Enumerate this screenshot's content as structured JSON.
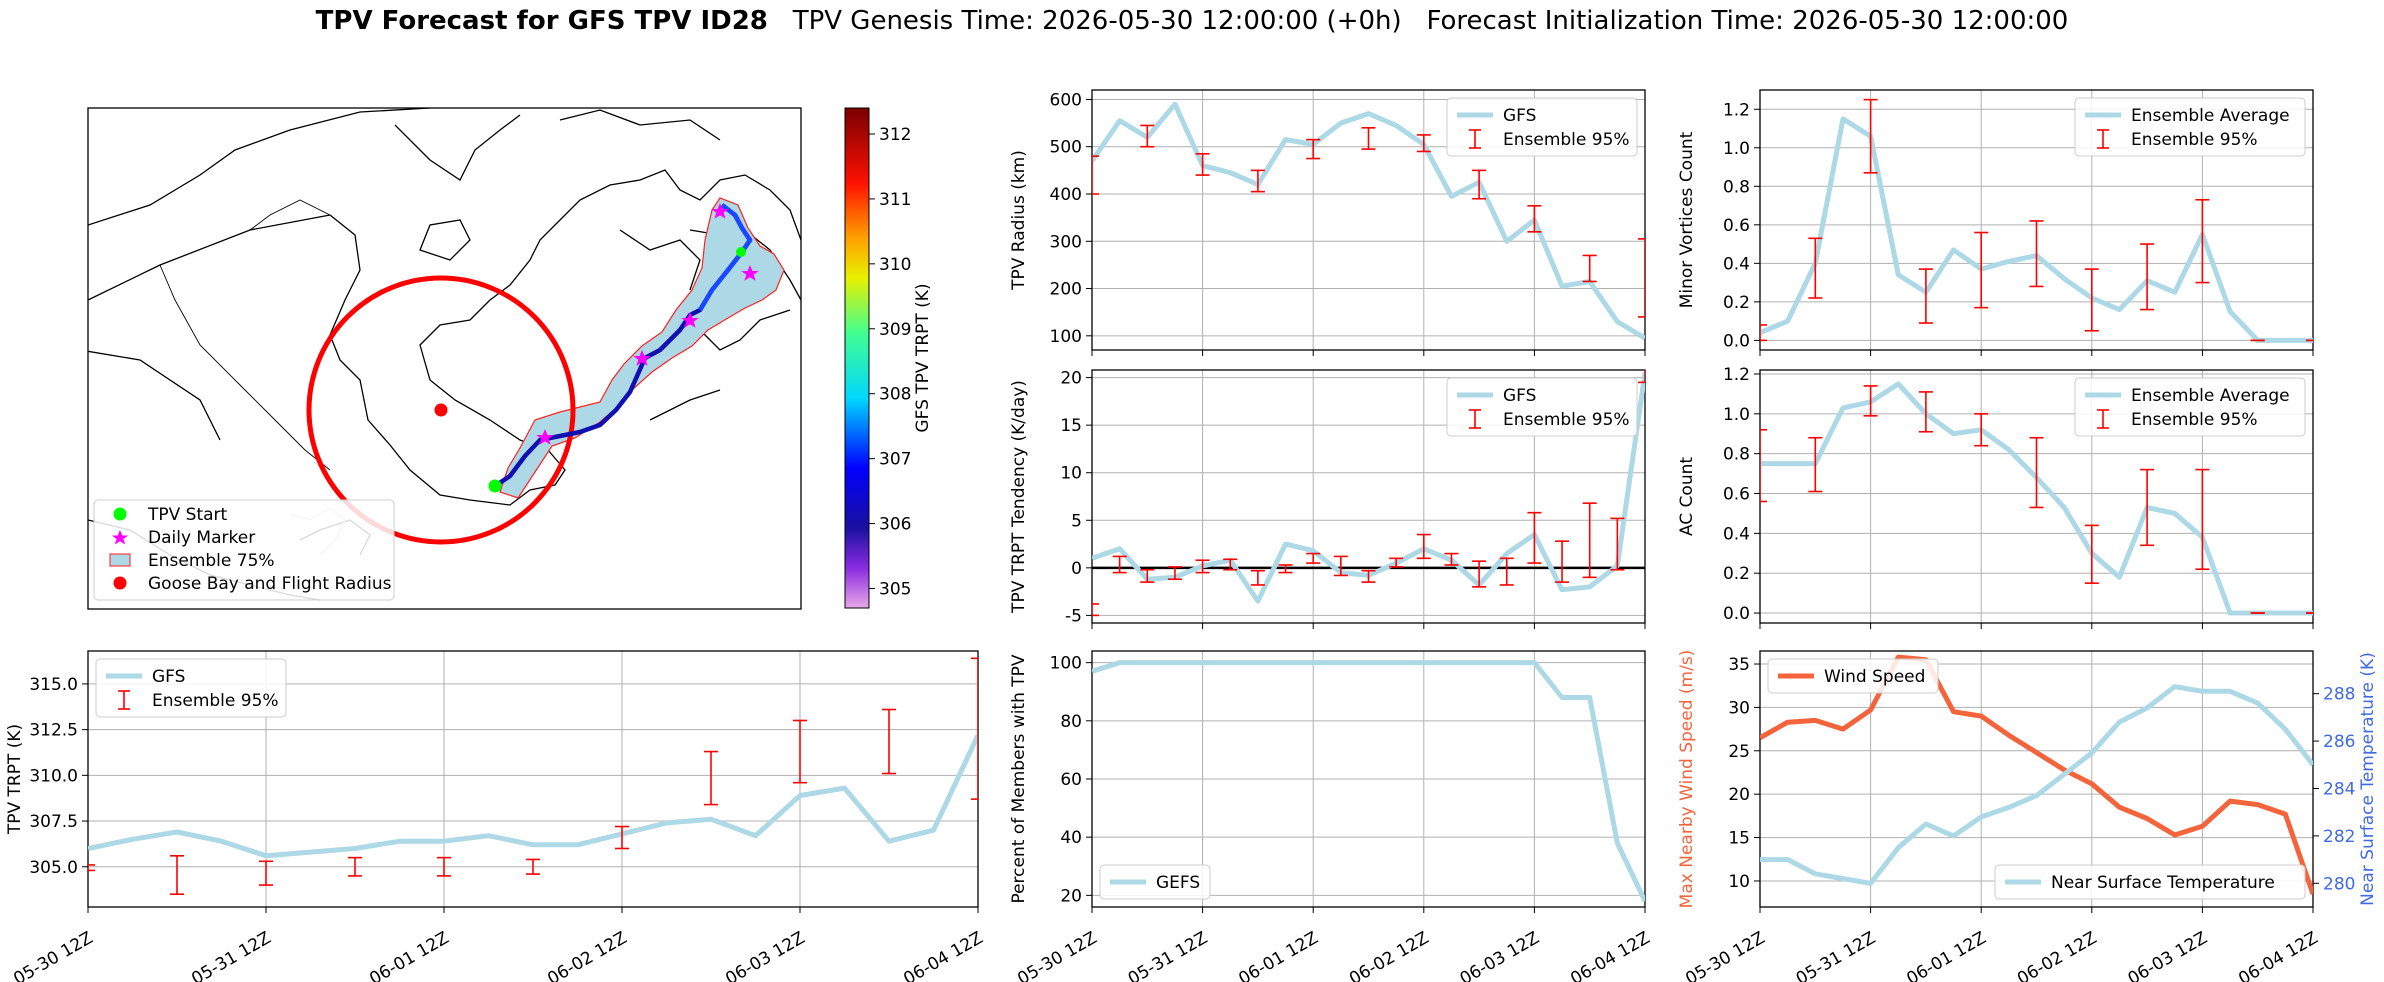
{
  "header": {
    "title_bold": "TPV Forecast for GFS TPV ID28",
    "genesis": "TPV Genesis Time: 2026-05-30 12:00:00 (+0h)",
    "init": "Forecast Initialization Time: 2026-05-30 12:00:00"
  },
  "colors": {
    "gfs": "#add8e6",
    "err": "#ff0000",
    "wind": "#f4643c",
    "temp": "#4169e1"
  },
  "time_ticks": [
    "05-30 12Z",
    "05-31 12Z",
    "06-01 12Z",
    "06-02 12Z",
    "06-03 12Z",
    "06-04 12Z"
  ],
  "map": {
    "colorbar_label": "GFS TPV TRPT (K)",
    "colorbar_ticks": [
      "305",
      "306",
      "307",
      "308",
      "309",
      "310",
      "311",
      "312"
    ],
    "legend": [
      {
        "label": "TPV Start",
        "color": "#00ff00",
        "marker": "circle"
      },
      {
        "label": "Daily Marker",
        "color": "#ff00ff",
        "marker": "star"
      },
      {
        "label": "Ensemble 75%",
        "color": "#add8e6",
        "marker": "patch"
      },
      {
        "label": "Goose Bay and Flight Radius",
        "color": "#ff0000",
        "marker": "circle"
      }
    ]
  },
  "chart_data": [
    {
      "id": "radius",
      "type": "line",
      "ylabel": "TPV Radius (km)",
      "ylim": [
        70,
        620
      ],
      "yticks": [
        100,
        200,
        300,
        400,
        500,
        600
      ],
      "legend": "top-right",
      "series": [
        {
          "name": "GFS",
          "kind": "line",
          "values": [
            470,
            555,
            520,
            590,
            460,
            445,
            420,
            515,
            505,
            550,
            570,
            545,
            505,
            395,
            425,
            300,
            345,
            205,
            215,
            130,
            95
          ]
        },
        {
          "name": "Ensemble 95%",
          "kind": "errorbar",
          "points": [
            [
              0,
              400,
              480
            ],
            [
              2,
              500,
              545
            ],
            [
              4,
              440,
              485
            ],
            [
              6,
              405,
              450
            ],
            [
              8,
              475,
              515
            ],
            [
              10,
              495,
              540
            ],
            [
              12,
              490,
              525
            ],
            [
              14,
              390,
              450
            ],
            [
              16,
              320,
              375
            ],
            [
              18,
              215,
              270
            ],
            [
              20,
              140,
              305
            ]
          ]
        }
      ]
    },
    {
      "id": "minor",
      "type": "line",
      "ylabel": "Minor Vortices Count",
      "ylim": [
        -0.05,
        1.3
      ],
      "yticks": [
        0.0,
        0.2,
        0.4,
        0.6,
        0.8,
        1.0,
        1.2
      ],
      "legend": "top-right",
      "series": [
        {
          "name": "Ensemble Average",
          "kind": "line",
          "values": [
            0.04,
            0.1,
            0.4,
            1.15,
            1.06,
            0.34,
            0.25,
            0.47,
            0.37,
            0.41,
            0.44,
            0.32,
            0.22,
            0.16,
            0.31,
            0.25,
            0.55,
            0.15,
            0.0,
            0.0,
            0.0
          ]
        },
        {
          "name": "Ensemble 95%",
          "kind": "errorbar",
          "points": [
            [
              0,
              0.0,
              0.08
            ],
            [
              2,
              0.22,
              0.53
            ],
            [
              4,
              0.87,
              1.25
            ],
            [
              6,
              0.09,
              0.37
            ],
            [
              8,
              0.17,
              0.56
            ],
            [
              10,
              0.28,
              0.62
            ],
            [
              12,
              0.05,
              0.37
            ],
            [
              14,
              0.16,
              0.5
            ],
            [
              16,
              0.3,
              0.73
            ],
            [
              18,
              0.0,
              0.0
            ],
            [
              20,
              0.0,
              0.0
            ]
          ]
        }
      ]
    },
    {
      "id": "tend",
      "type": "line",
      "ylabel": "TPV TRPT Tendency (K/day)",
      "ylim": [
        -5.8,
        20.8
      ],
      "yticks": [
        -5,
        0,
        5,
        10,
        15,
        20
      ],
      "legend": "top-right",
      "zero_line": true,
      "series": [
        {
          "name": "GFS",
          "kind": "line",
          "values": [
            1.0,
            2.0,
            -1.2,
            -1.0,
            0.2,
            0.8,
            -3.5,
            2.5,
            1.8,
            -0.5,
            -0.8,
            0.5,
            2.0,
            0.8,
            -1.8,
            1.5,
            3.5,
            -2.3,
            -2.0,
            0.2,
            20.5
          ]
        },
        {
          "name": "Ensemble 95%",
          "kind": "errorbar",
          "points": [
            [
              0,
              -5.0,
              -3.8
            ],
            [
              1,
              -0.5,
              1.2
            ],
            [
              2,
              -1.5,
              -0.2
            ],
            [
              3,
              -1.2,
              0.1
            ],
            [
              4,
              -0.5,
              0.8
            ],
            [
              5,
              -0.2,
              0.9
            ],
            [
              6,
              -1.8,
              -0.3
            ],
            [
              7,
              -0.5,
              0.3
            ],
            [
              8,
              0.5,
              1.5
            ],
            [
              9,
              -0.8,
              1.2
            ],
            [
              10,
              -1.5,
              -0.3
            ],
            [
              11,
              0.1,
              1.0
            ],
            [
              12,
              1.0,
              3.5
            ],
            [
              13,
              0.3,
              1.5
            ],
            [
              14,
              -2.0,
              0.7
            ],
            [
              15,
              -1.8,
              1.0
            ],
            [
              16,
              0.5,
              5.8
            ],
            [
              17,
              -1.5,
              2.8
            ],
            [
              18,
              -1.0,
              6.8
            ],
            [
              19,
              -0.2,
              5.2
            ],
            [
              20,
              19.5,
              21.0
            ]
          ]
        }
      ]
    },
    {
      "id": "ac",
      "type": "line",
      "ylabel": "AC Count",
      "ylim": [
        -0.05,
        1.22
      ],
      "yticks": [
        0.0,
        0.2,
        0.4,
        0.6,
        0.8,
        1.0,
        1.2
      ],
      "legend": "top-right",
      "series": [
        {
          "name": "Ensemble Average",
          "kind": "line",
          "values": [
            0.75,
            0.75,
            0.75,
            1.03,
            1.06,
            1.15,
            1.0,
            0.9,
            0.92,
            0.82,
            0.68,
            0.53,
            0.3,
            0.18,
            0.53,
            0.5,
            0.38,
            0.0,
            0.0,
            0.0,
            0.0
          ]
        },
        {
          "name": "Ensemble 95%",
          "kind": "errorbar",
          "points": [
            [
              0,
              0.56,
              0.92
            ],
            [
              2,
              0.61,
              0.88
            ],
            [
              4,
              0.99,
              1.14
            ],
            [
              6,
              0.91,
              1.11
            ],
            [
              8,
              0.84,
              1.0
            ],
            [
              10,
              0.53,
              0.88
            ],
            [
              12,
              0.15,
              0.44
            ],
            [
              14,
              0.34,
              0.72
            ],
            [
              16,
              0.22,
              0.72
            ],
            [
              18,
              0.0,
              0.0
            ],
            [
              20,
              0.0,
              0.0
            ]
          ]
        }
      ]
    },
    {
      "id": "trpt",
      "type": "line",
      "ylabel": "TPV TRPT (K)",
      "ylim": [
        302.8,
        316.8
      ],
      "yticks": [
        305.0,
        307.5,
        310.0,
        312.5,
        315.0
      ],
      "legend": "top-left",
      "series": [
        {
          "name": "GFS",
          "kind": "line",
          "values": [
            306.0,
            306.5,
            306.9,
            306.4,
            305.6,
            305.8,
            306.0,
            306.4,
            306.4,
            306.7,
            306.2,
            306.2,
            306.8,
            307.4,
            307.6,
            306.7,
            308.9,
            309.3,
            306.4,
            307.0,
            312.2
          ]
        },
        {
          "name": "Ensemble 95%",
          "kind": "errorbar",
          "points": [
            [
              0,
              304.8,
              305.1
            ],
            [
              2,
              303.5,
              305.6
            ],
            [
              4,
              304.0,
              305.3
            ],
            [
              6,
              304.5,
              305.5
            ],
            [
              8,
              304.5,
              305.5
            ],
            [
              10,
              304.6,
              305.4
            ],
            [
              12,
              306.0,
              307.2
            ],
            [
              14,
              308.4,
              311.3
            ],
            [
              16,
              309.6,
              313.0
            ],
            [
              18,
              310.1,
              313.6
            ],
            [
              20,
              308.7,
              316.4
            ]
          ]
        }
      ]
    },
    {
      "id": "members",
      "type": "line",
      "ylabel": "Percent of Members with TPV",
      "ylim": [
        16,
        104
      ],
      "yticks": [
        20,
        40,
        60,
        80,
        100
      ],
      "legend": "bottom-left",
      "series": [
        {
          "name": "GEFS",
          "kind": "line",
          "values": [
            97,
            100,
            100,
            100,
            100,
            100,
            100,
            100,
            100,
            100,
            100,
            100,
            100,
            100,
            100,
            100,
            100,
            88,
            88,
            38,
            18
          ]
        }
      ]
    },
    {
      "id": "wind",
      "type": "line",
      "ylabel": "Max Nearby Wind Speed (m/s)",
      "ylim": [
        7.0,
        36.5
      ],
      "yticks": [
        10,
        15,
        20,
        25,
        30,
        35
      ],
      "legend": "top-left",
      "y2label": "Near Surface Temperature (K)",
      "y2lim": [
        279.0,
        289.8
      ],
      "y2ticks": [
        280,
        282,
        284,
        286,
        288
      ],
      "y2legend": "bottom-right",
      "series": [
        {
          "name": "Wind Speed",
          "kind": "line",
          "axis": "left",
          "values": [
            26.5,
            28.3,
            28.5,
            27.5,
            29.7,
            35.8,
            35.5,
            29.5,
            29.0,
            26.8,
            24.8,
            22.8,
            21.2,
            18.5,
            17.2,
            15.3,
            16.3,
            19.2,
            18.8,
            17.7,
            8.5
          ]
        },
        {
          "name": "Near Surface Temperature",
          "kind": "line",
          "axis": "right",
          "values": [
            281.0,
            281.0,
            280.4,
            280.2,
            280.0,
            281.5,
            282.5,
            282.0,
            282.8,
            283.2,
            283.7,
            284.6,
            285.5,
            286.8,
            287.4,
            288.3,
            288.1,
            288.1,
            287.6,
            286.5,
            285.0
          ]
        }
      ]
    }
  ]
}
